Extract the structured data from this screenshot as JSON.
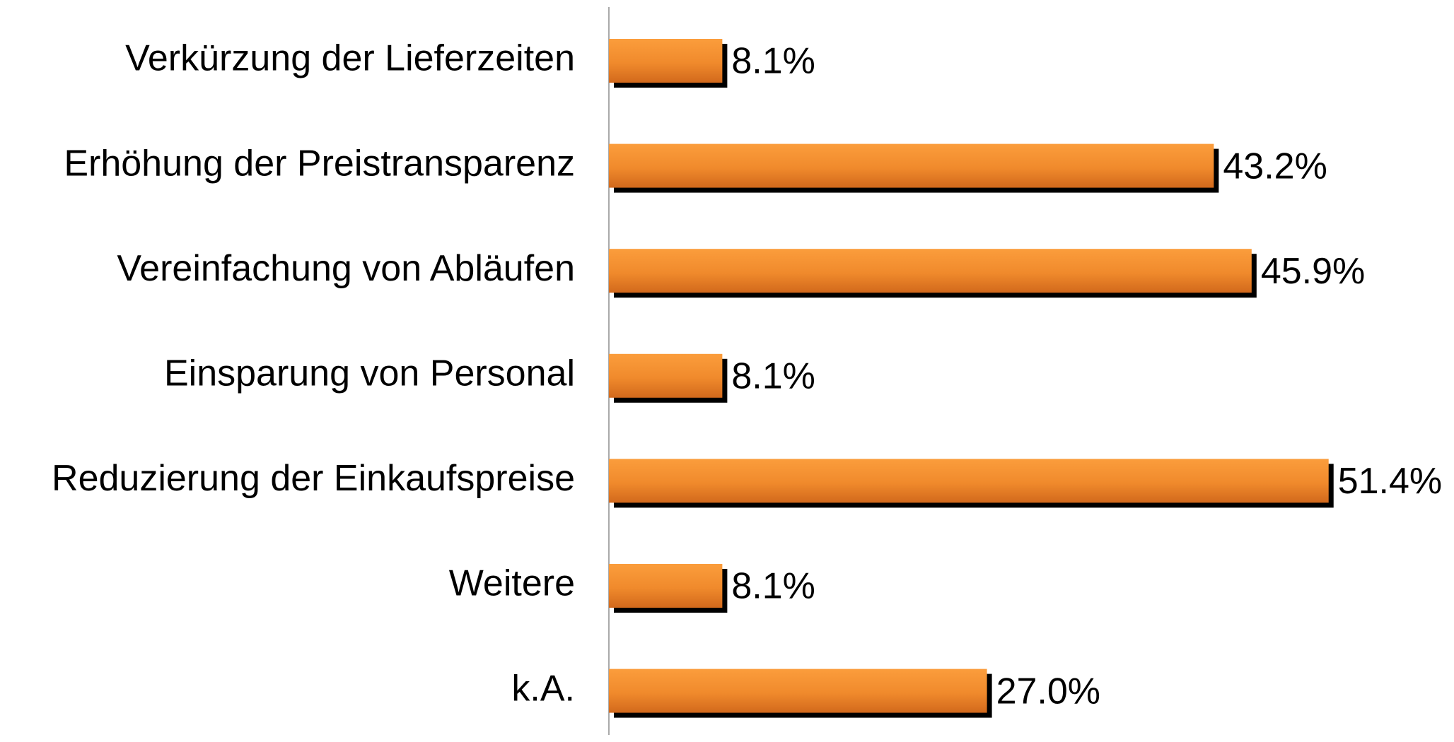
{
  "chart_data": {
    "type": "bar",
    "orientation": "horizontal",
    "categories": [
      "Verkürzung der Lieferzeiten",
      "Erhöhung der Preistransparenz",
      "Vereinfachung von Abläufen",
      "Einsparung von Personal",
      "Reduzierung der Einkaufspreise",
      "Weitere",
      "k.A."
    ],
    "values": [
      8.1,
      43.2,
      45.9,
      8.1,
      51.4,
      8.1,
      27.0
    ],
    "value_labels": [
      "8.1%",
      "43.2%",
      "45.9%",
      "8.1%",
      "51.4%",
      "8.1%",
      "27.0%"
    ],
    "color": "#f08a2c"
  }
}
